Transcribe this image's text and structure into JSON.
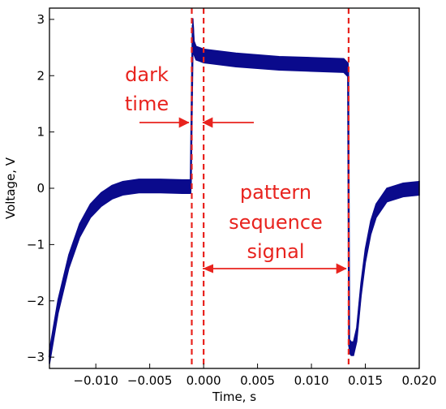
{
  "chart_data": {
    "type": "line",
    "title": "",
    "xlabel": "Time, s",
    "ylabel": "Voltage, V",
    "xlim": [
      -0.0143,
      0.02
    ],
    "ylim": [
      -3.2,
      3.2
    ],
    "x_ticks": [
      -0.01,
      -0.005,
      0.0,
      0.005,
      0.01,
      0.015,
      0.02
    ],
    "x_tick_labels": [
      "−0.010",
      "−0.005",
      "0.000",
      "0.005",
      "0.010",
      "0.015",
      "0.020"
    ],
    "y_ticks": [
      -3,
      -2,
      -1,
      0,
      1,
      2,
      3
    ],
    "y_tick_labels": [
      "−3",
      "−2",
      "−1",
      "0",
      "1",
      "2",
      "3"
    ],
    "series": [
      {
        "color": "#0a0a8c",
        "band_halfwidth_V": 0.12,
        "x": [
          -0.0143,
          -0.0135,
          -0.0125,
          -0.0115,
          -0.0105,
          -0.0095,
          -0.0085,
          -0.0075,
          -0.006,
          -0.004,
          -0.002,
          -0.0012,
          -0.0011,
          -0.001,
          -0.0009,
          -0.0007,
          -0.0004,
          0.0,
          0.003,
          0.007,
          0.01,
          0.013,
          0.0134,
          0.0135,
          0.0137,
          0.0139,
          0.0142,
          0.0146,
          0.015,
          0.0155,
          0.016,
          0.017,
          0.0185,
          0.02
        ],
        "y": [
          -3.0,
          -2.1,
          -1.3,
          -0.75,
          -0.4,
          -0.2,
          -0.07,
          0.0,
          0.04,
          0.04,
          0.03,
          0.03,
          1.5,
          2.9,
          2.5,
          2.4,
          2.38,
          2.35,
          2.28,
          2.22,
          2.2,
          2.18,
          2.1,
          -2.8,
          -2.85,
          -2.85,
          -2.6,
          -1.8,
          -1.2,
          -0.7,
          -0.4,
          -0.12,
          -0.03,
          0.0
        ]
      }
    ],
    "markers": [
      {
        "x": -0.0011,
        "color": "#e8231e",
        "style": "dashed"
      },
      {
        "x": 0.0,
        "color": "#e8231e",
        "style": "dashed"
      },
      {
        "x": 0.01345,
        "color": "#e8231e",
        "style": "dashed"
      }
    ],
    "annotations": [
      {
        "lines": [
          "dark",
          "time"
        ],
        "arrow_from": [
          -0.0011,
          1.2
        ],
        "arrow_to": [
          0.0,
          1.2
        ]
      },
      {
        "lines": [
          "pattern",
          "sequence",
          "signal"
        ],
        "arrow_from": [
          0.0,
          -1.35
        ],
        "arrow_to": [
          0.01345,
          -1.35
        ]
      }
    ],
    "grid": false,
    "legend": "none"
  }
}
